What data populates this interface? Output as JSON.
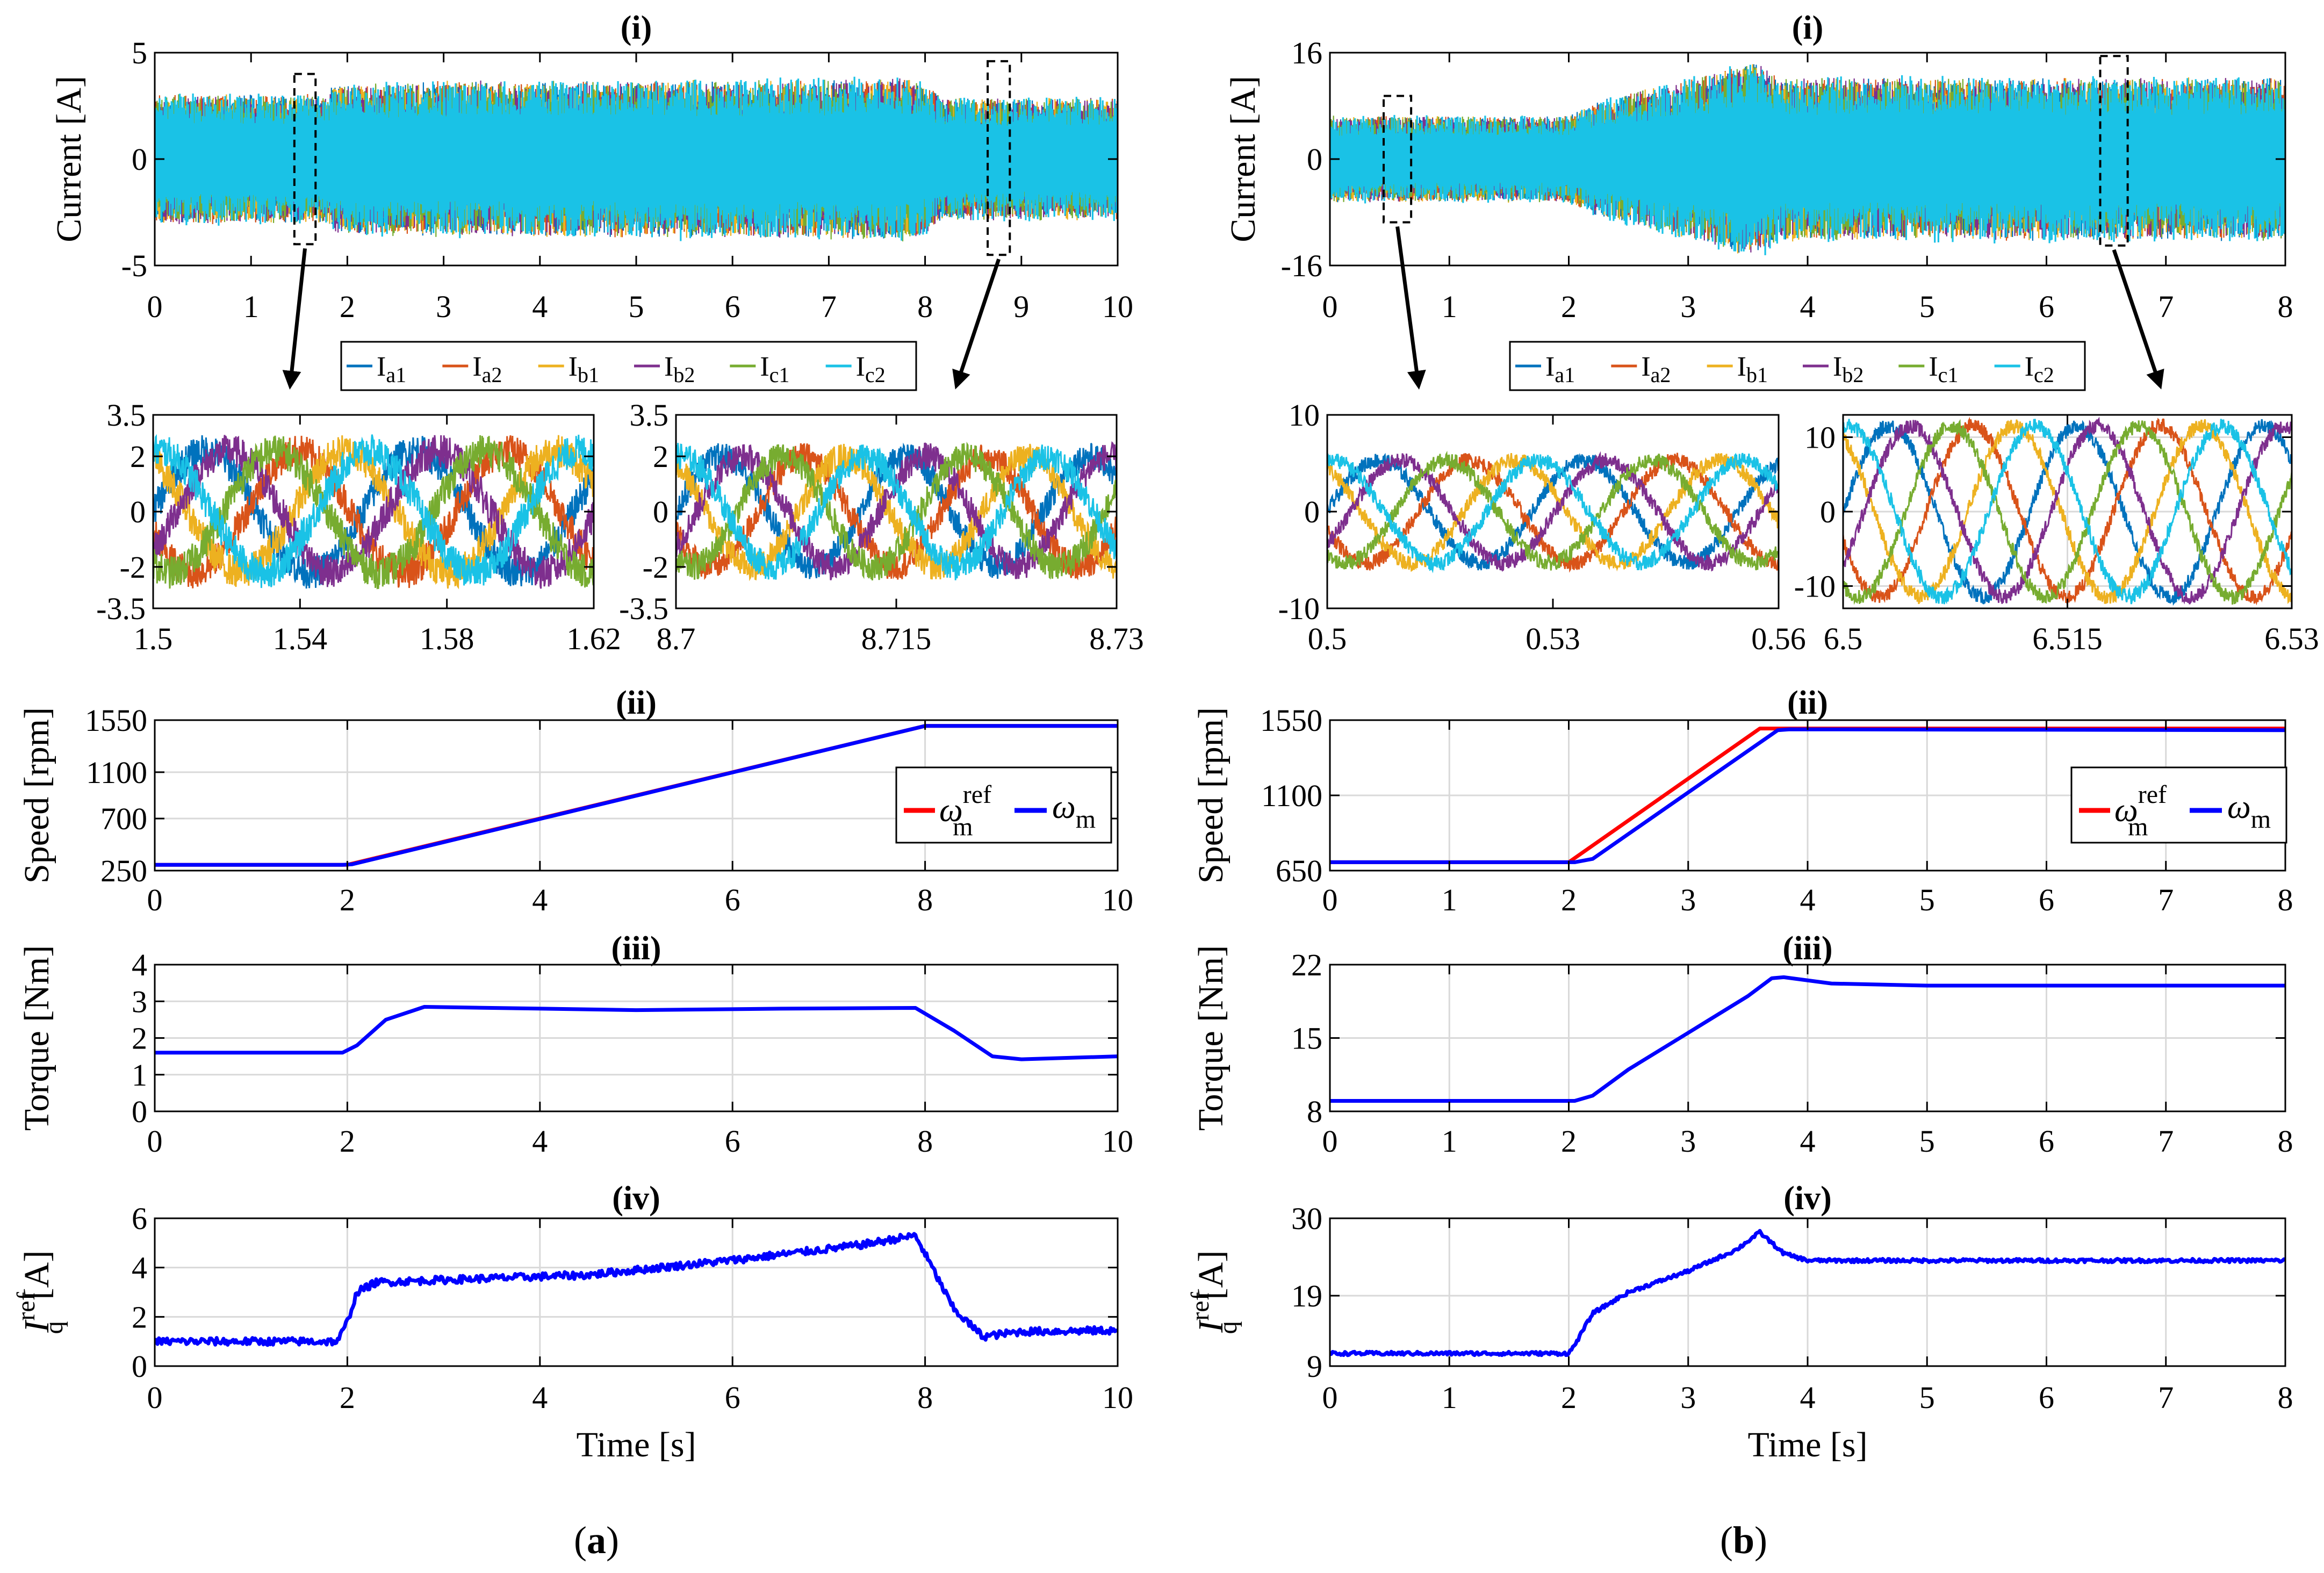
{
  "captions": [
    {
      "prefix": "(",
      "letter": "a",
      "suffix": ")"
    },
    {
      "prefix": "(",
      "letter": "b",
      "suffix": ")"
    }
  ],
  "phase_colors": [
    "#0072BD",
    "#D95319",
    "#EDB120",
    "#7E2F8E",
    "#77AC30",
    "#1AC2E6"
  ],
  "legend_phases": [
    {
      "main": "I",
      "sub": "a1"
    },
    {
      "main": "I",
      "sub": "a2"
    },
    {
      "main": "I",
      "sub": "b1"
    },
    {
      "main": "I",
      "sub": "b2"
    },
    {
      "main": "I",
      "sub": "c1"
    },
    {
      "main": "I",
      "sub": "c2"
    }
  ],
  "chart_data": [
    {
      "id": "a-i",
      "type": "line",
      "title": "(i)",
      "ylabel": "Current [A]",
      "xlabel": "",
      "xlim": [
        0,
        10
      ],
      "ylim": [
        -5,
        5
      ],
      "xticks": [
        "0",
        "1",
        "2",
        "3",
        "4",
        "5",
        "6",
        "7",
        "8",
        "9",
        "10"
      ],
      "yticks": [
        "-5",
        "0",
        "5"
      ],
      "envelope": {
        "x": [
          0,
          1.8,
          1.85,
          2.0,
          3.0,
          7.0,
          7.8,
          8.0,
          8.2,
          10.0
        ],
        "amplitude": [
          3.2,
          3.2,
          3.6,
          3.7,
          3.8,
          3.9,
          4.0,
          3.6,
          3.0,
          3.0
        ]
      },
      "series": [
        "Ia1",
        "Ia2",
        "Ib1",
        "Ib2",
        "Ic1",
        "Ic2"
      ]
    },
    {
      "id": "a-z1",
      "type": "line",
      "title": "",
      "xlim": [
        1.5,
        1.62
      ],
      "ylim": [
        -3.5,
        3.5
      ],
      "xticks": [
        "1.5",
        "1.54",
        "1.58",
        "1.62"
      ],
      "yticks": [
        "-3.5",
        "-2",
        "0",
        "2",
        "3.5"
      ],
      "amplitude": 2.2,
      "cycles": 2.1,
      "noise": 0.6
    },
    {
      "id": "a-z2",
      "type": "line",
      "title": "",
      "xlim": [
        8.7,
        8.73
      ],
      "ylim": [
        -3.5,
        3.5
      ],
      "xticks": [
        "8.7",
        "8.715",
        "8.73"
      ],
      "yticks": [
        "-3.5",
        "-2",
        "0",
        "2",
        "3.5"
      ],
      "amplitude": 2.0,
      "cycles": 2.4,
      "noise": 0.5
    },
    {
      "id": "a-ii",
      "type": "line",
      "title": "(ii)",
      "ylabel": "Speed [rpm]",
      "xlabel": "",
      "xlim": [
        0,
        10
      ],
      "ylim": [
        250,
        1550
      ],
      "xticks": [
        "0",
        "2",
        "4",
        "6",
        "8",
        "10"
      ],
      "yticks": [
        "250",
        "700",
        "1100",
        "1550"
      ],
      "series": [
        {
          "name": "ω_m^ref",
          "color": "#FF0000",
          "x": [
            0,
            2,
            8,
            10
          ],
          "y": [
            300,
            300,
            1500,
            1500
          ]
        },
        {
          "name": "ω_m",
          "color": "#0000FF",
          "x": [
            0,
            1.95,
            2.05,
            8,
            10
          ],
          "y": [
            300,
            300,
            305,
            1500,
            1500
          ]
        }
      ]
    },
    {
      "id": "a-iii",
      "type": "line",
      "title": "(iii)",
      "ylabel": "Torque [Nm]",
      "xlabel": "",
      "xlim": [
        0,
        10
      ],
      "ylim": [
        0,
        4
      ],
      "xticks": [
        "0",
        "2",
        "4",
        "6",
        "8",
        "10"
      ],
      "yticks": [
        "0",
        "1",
        "2",
        "3",
        "4"
      ],
      "series": [
        {
          "name": "Torque",
          "color": "#0000FF",
          "x": [
            0,
            1.95,
            2.1,
            2.4,
            2.8,
            3.5,
            5,
            6.5,
            7.9,
            8.3,
            8.7,
            9.0,
            10
          ],
          "y": [
            1.6,
            1.6,
            1.8,
            2.5,
            2.85,
            2.82,
            2.76,
            2.8,
            2.82,
            2.2,
            1.5,
            1.42,
            1.5
          ]
        }
      ]
    },
    {
      "id": "a-iv",
      "type": "line",
      "title": "(iv)",
      "ylabel": "I_q^ref [A]",
      "xlabel": "Time [s]",
      "xlim": [
        0,
        10
      ],
      "ylim": [
        0,
        6
      ],
      "xticks": [
        "0",
        "2",
        "4",
        "6",
        "8",
        "10"
      ],
      "yticks": [
        "0",
        "2",
        "4",
        "6"
      ],
      "series": [
        {
          "name": "Iq ref",
          "color": "#0000FF",
          "x": [
            0,
            1.9,
            2.0,
            2.1,
            2.3,
            3,
            4.5,
            6,
            7.3,
            7.9,
            8.1,
            8.3,
            8.6,
            9.0,
            10
          ],
          "y": [
            1.0,
            1.0,
            1.8,
            3.0,
            3.4,
            3.5,
            3.7,
            4.3,
            4.9,
            5.3,
            3.8,
            2.3,
            1.2,
            1.4,
            1.45
          ],
          "noise": 0.15
        }
      ]
    },
    {
      "id": "b-i",
      "type": "line",
      "title": "(i)",
      "ylabel": "Current [A]",
      "xlabel": "",
      "xlim": [
        0,
        8
      ],
      "ylim": [
        -16,
        16
      ],
      "xticks": [
        "0",
        "1",
        "2",
        "3",
        "4",
        "5",
        "6",
        "7",
        "8"
      ],
      "yticks": [
        "-16",
        "0",
        "16"
      ],
      "envelope": {
        "x": [
          0,
          2.0,
          2.3,
          3.0,
          3.55,
          3.6,
          3.8,
          4.0,
          8.0
        ],
        "amplitude": [
          6.8,
          6.8,
          9.5,
          12.5,
          15.5,
          15.0,
          13.0,
          12.8,
          12.8
        ]
      },
      "series": [
        "Ia1",
        "Ia2",
        "Ib1",
        "Ib2",
        "Ic1",
        "Ic2"
      ]
    },
    {
      "id": "b-z1",
      "type": "line",
      "title": "",
      "xlim": [
        0.5,
        0.56
      ],
      "ylim": [
        -10,
        10
      ],
      "xticks": [
        "0.5",
        "0.53",
        "0.56"
      ],
      "yticks": [
        "-10",
        "0",
        "10"
      ],
      "amplitude": 5.3,
      "cycles": 2.2,
      "noise": 0.8
    },
    {
      "id": "b-z2",
      "type": "line",
      "title": "",
      "xlim": [
        6.5,
        6.53
      ],
      "ylim": [
        -13,
        13
      ],
      "xticks": [
        "6.5",
        "6.515",
        "6.53"
      ],
      "yticks": [
        "-10",
        "0",
        "10"
      ],
      "amplitude": 11.5,
      "cycles": 2.4,
      "noise": 1.0
    },
    {
      "id": "b-ii",
      "type": "line",
      "title": "(ii)",
      "ylabel": "Speed [rpm]",
      "xlabel": "",
      "xlim": [
        0,
        8
      ],
      "ylim": [
        650,
        1550
      ],
      "xticks": [
        "0",
        "1",
        "2",
        "3",
        "4",
        "5",
        "6",
        "7",
        "8"
      ],
      "yticks": [
        "650",
        "1100",
        "1550"
      ],
      "series": [
        {
          "name": "ω_m^ref",
          "color": "#FF0000",
          "x": [
            0,
            2,
            3.6,
            8
          ],
          "y": [
            700,
            700,
            1500,
            1500
          ]
        },
        {
          "name": "ω_m",
          "color": "#0000FF",
          "x": [
            0,
            2.05,
            2.2,
            3.75,
            3.85,
            8
          ],
          "y": [
            700,
            700,
            720,
            1490,
            1495,
            1490
          ]
        }
      ]
    },
    {
      "id": "b-iii",
      "type": "line",
      "title": "(iii)",
      "ylabel": "Torque [Nm]",
      "xlabel": "",
      "xlim": [
        0,
        8
      ],
      "ylim": [
        8,
        22
      ],
      "xticks": [
        "0",
        "1",
        "2",
        "3",
        "4",
        "5",
        "6",
        "7",
        "8"
      ],
      "yticks": [
        "8",
        "15",
        "22"
      ],
      "series": [
        {
          "name": "Torque",
          "color": "#0000FF",
          "x": [
            0,
            2.05,
            2.2,
            2.5,
            3.0,
            3.5,
            3.7,
            3.8,
            4.2,
            5,
            8
          ],
          "y": [
            9.0,
            9.0,
            9.5,
            12.0,
            15.5,
            19.0,
            20.7,
            20.8,
            20.2,
            20.0,
            20.0
          ]
        }
      ]
    },
    {
      "id": "b-iv",
      "type": "line",
      "title": "(iv)",
      "ylabel": "I_q^ref [A]",
      "xlabel": "Time [s]",
      "xlim": [
        0,
        8
      ],
      "ylim": [
        9,
        30
      ],
      "xticks": [
        "0",
        "1",
        "2",
        "3",
        "4",
        "5",
        "6",
        "7",
        "8"
      ],
      "yticks": [
        "9",
        "19",
        "30"
      ],
      "series": [
        {
          "name": "Iq ref",
          "color": "#0000FF",
          "x": [
            0,
            2.0,
            2.05,
            2.2,
            2.5,
            3.0,
            3.4,
            3.6,
            3.8,
            4.0,
            8
          ],
          "y": [
            10.8,
            10.8,
            12.0,
            16.5,
            19.5,
            22.5,
            25.5,
            28.0,
            25.0,
            24.0,
            24.0
          ],
          "noise": 0.25
        }
      ]
    }
  ]
}
